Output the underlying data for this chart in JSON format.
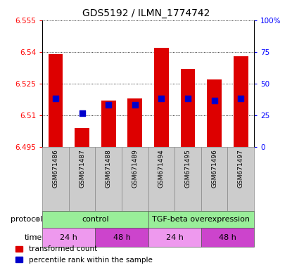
{
  "title": "GDS5192 / ILMN_1774742",
  "samples": [
    "GSM671486",
    "GSM671487",
    "GSM671488",
    "GSM671489",
    "GSM671494",
    "GSM671495",
    "GSM671496",
    "GSM671497"
  ],
  "red_tops": [
    6.539,
    6.504,
    6.517,
    6.518,
    6.542,
    6.532,
    6.527,
    6.538
  ],
  "blue_vals": [
    6.518,
    6.511,
    6.515,
    6.515,
    6.518,
    6.518,
    6.517,
    6.518
  ],
  "baseline": 6.495,
  "ylim": [
    6.495,
    6.555
  ],
  "yticks_left": [
    6.495,
    6.51,
    6.525,
    6.54,
    6.555
  ],
  "yticks_right": [
    0,
    25,
    50,
    75,
    100
  ],
  "right_ylim": [
    0,
    100
  ],
  "bar_color": "#dd0000",
  "blue_color": "#0000cc",
  "legend_red": "transformed count",
  "legend_blue": "percentile rank within the sample",
  "bar_width": 0.55,
  "blue_size": 30,
  "sample_bg": "#cccccc",
  "protocol_color": "#99ee99",
  "time_color_24": "#ee99ee",
  "time_color_48": "#cc44cc"
}
